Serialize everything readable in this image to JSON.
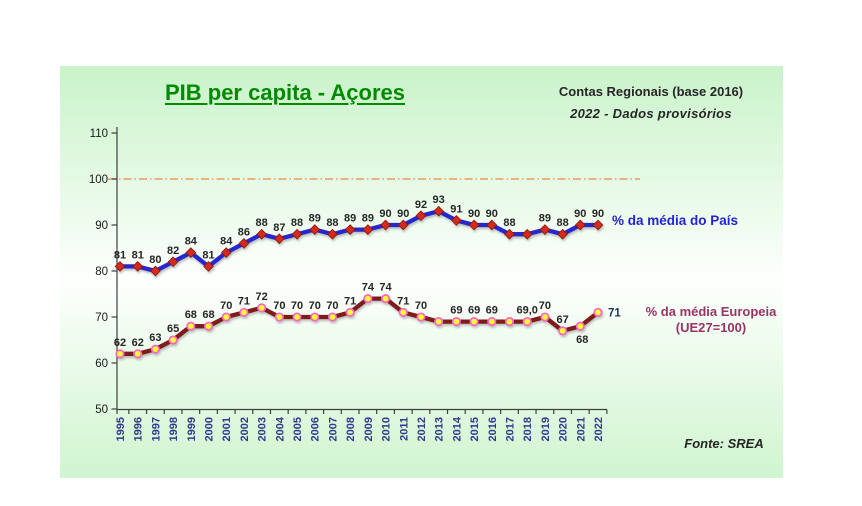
{
  "header": {
    "title": "PIB per capita - Açores",
    "note_line1": "Contas Regionais (base 2016)",
    "note_line2": "2022 - Dados  provisórios"
  },
  "legend": {
    "country_label": "% da média do País",
    "europe_label_line1": "% da média Europeia",
    "europe_label_line2": "(UE27=100)"
  },
  "footer": {
    "source": "Fonte: SREA"
  },
  "colors": {
    "title_green": "#008A00",
    "country_line_blue": "#2727CE",
    "country_marker_red": "#D32A1C",
    "europe_line_maroon": "#7E1B1B",
    "europe_marker_yellow": "#FFFF33",
    "europe_marker_pink_ring": "#FF63C5",
    "legend_maroon_text": "#993366",
    "reference_line_orange": "#EB9A5C",
    "year_label_blue": "#2E3A8C",
    "background_green": "#c9f3c9"
  },
  "chart_data": {
    "type": "line",
    "title": "PIB per capita - Açores",
    "xlabel": "",
    "ylabel": "",
    "ylim": [
      50,
      110
    ],
    "yticks": [
      50,
      60,
      70,
      80,
      90,
      100,
      110
    ],
    "grid": false,
    "legend_position": "right-of-line-ends",
    "x_years": [
      "1995",
      "1996",
      "1997",
      "1998",
      "1999",
      "2000",
      "2001",
      "2002",
      "2003",
      "2004",
      "2005",
      "2006",
      "2007",
      "2008",
      "2009",
      "2010",
      "2011",
      "2012",
      "2013",
      "2014",
      "2015",
      "2016",
      "2017",
      "2018",
      "2019",
      "2020",
      "2021",
      "2022"
    ],
    "reference_line": {
      "value": 100,
      "color": "#EB9A5C",
      "style": "dash-dot"
    },
    "series": [
      {
        "name": "% da média do País",
        "color": "#2727CE",
        "marker": "diamond-red",
        "values": [
          81,
          81,
          80,
          82,
          84,
          81,
          84,
          86,
          88,
          87,
          88,
          89,
          88,
          89,
          89,
          90,
          90,
          92,
          93,
          91,
          90,
          90,
          88,
          88,
          89,
          88,
          90,
          90
        ],
        "labels": [
          "81",
          "81",
          "80",
          "82",
          "84",
          "81",
          "84",
          "86",
          "88",
          "87",
          "88",
          "89",
          "88",
          "89",
          "89",
          "90",
          "90",
          "92",
          "93",
          "91",
          "90",
          "90",
          "88",
          "",
          "89",
          "88",
          "90",
          "90"
        ]
      },
      {
        "name": "% da média Europeia (UE27=100)",
        "color": "#7E1B1B",
        "marker": "circle-yellow-pink",
        "values": [
          62,
          62,
          63,
          65,
          68,
          68,
          70,
          71,
          72,
          70,
          70,
          70,
          70,
          71,
          74,
          74,
          71,
          70,
          69,
          69,
          69,
          69,
          69,
          69,
          70,
          67,
          68,
          71
        ],
        "labels": [
          "62",
          "62",
          "63",
          "65",
          "68",
          "68",
          "70",
          "71",
          "72",
          "70",
          "70",
          "70",
          "70",
          "71",
          "74",
          "74",
          "71",
          "70",
          "",
          "69",
          "69",
          "69",
          "",
          "69,0",
          "70",
          "67",
          "68",
          "71"
        ],
        "label_overrides": {
          "26": "below",
          "27": "right-bold"
        }
      }
    ]
  }
}
